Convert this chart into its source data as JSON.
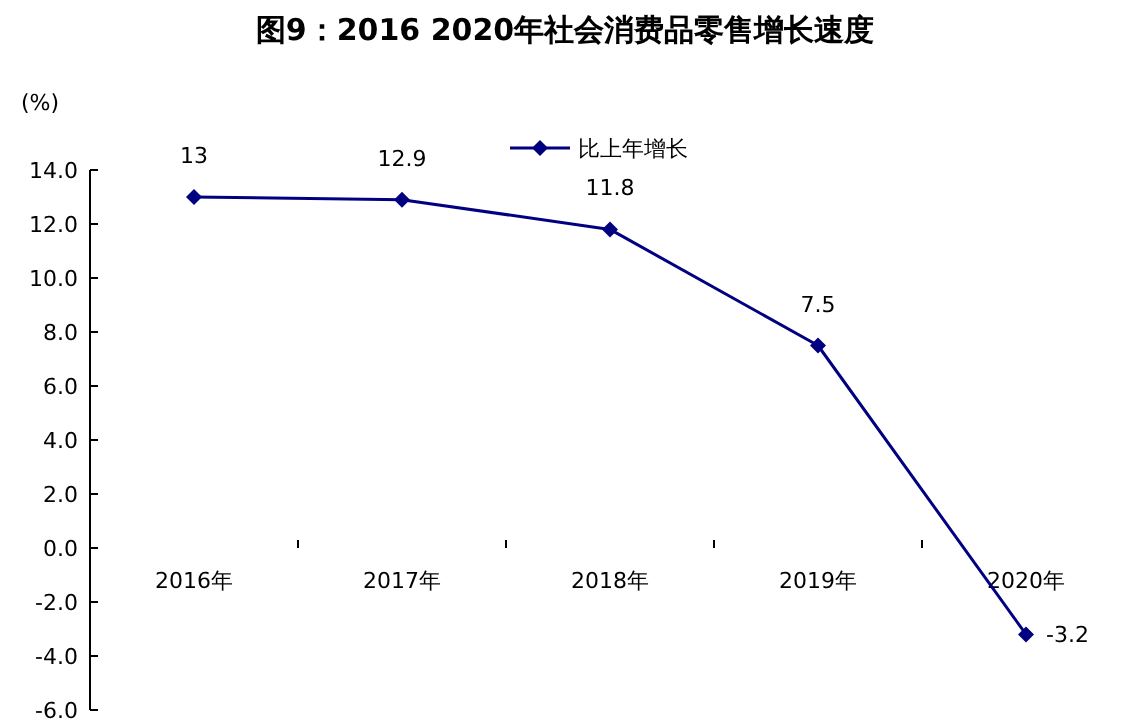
{
  "chart_data": {
    "type": "line",
    "title": "图9：2016 2020年社会消费品零售增长速度",
    "ylabel": "(%)",
    "categories": [
      "2016年",
      "2017年",
      "2018年",
      "2019年",
      "2020年"
    ],
    "series": [
      {
        "name": "比上年增长",
        "color": "#000080",
        "values": [
          13,
          12.9,
          11.8,
          7.5,
          -3.2
        ]
      }
    ],
    "ylim": [
      -6,
      14
    ],
    "yticks": [
      {
        "value": 14,
        "label": "14.0"
      },
      {
        "value": 12,
        "label": "12.0"
      },
      {
        "value": 10,
        "label": "10.0"
      },
      {
        "value": 8,
        "label": "8.0"
      },
      {
        "value": 6,
        "label": "6.0"
      },
      {
        "value": 4,
        "label": "4.0"
      },
      {
        "value": 2,
        "label": "2.0"
      },
      {
        "value": 0,
        "label": "0.0"
      },
      {
        "value": -2,
        "label": "-2.0"
      },
      {
        "value": -4,
        "label": "-4.0"
      },
      {
        "value": -6,
        "label": "-6.0"
      }
    ],
    "marker": "diamond",
    "data_labels": true,
    "legend": "top",
    "grid": false
  }
}
